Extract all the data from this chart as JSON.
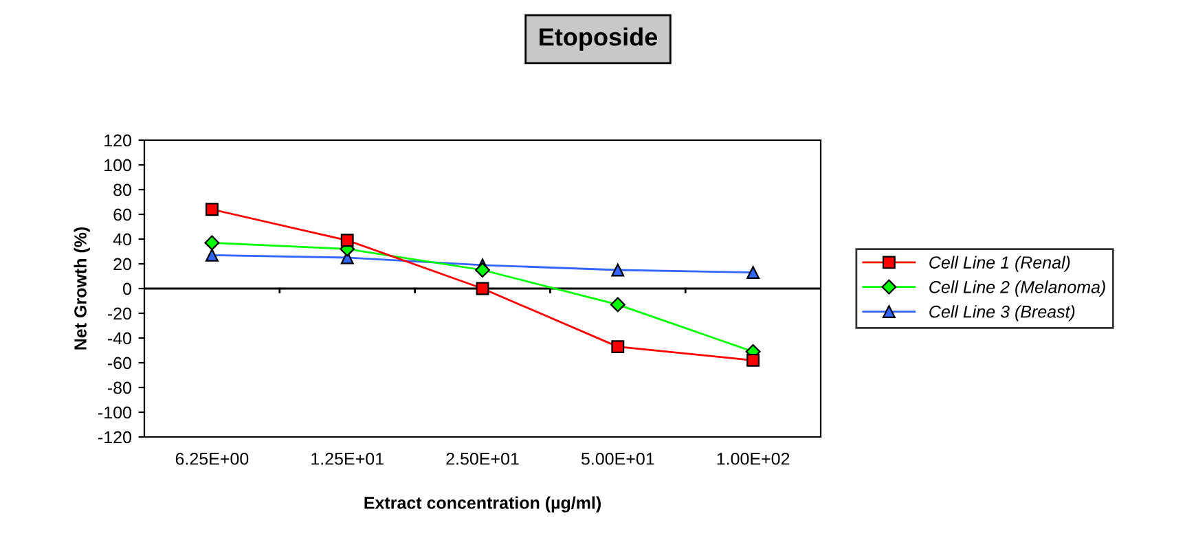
{
  "chart_data": {
    "type": "line",
    "title": "Etoposide",
    "xlabel": "Extract concentration (µg/ml)",
    "ylabel": "Net Growth (%)",
    "categories": [
      "6.25E+00",
      "1.25E+01",
      "2.50E+01",
      "5.00E+01",
      "1.00E+02"
    ],
    "series": [
      {
        "name": "Cell Line 1 (Renal)",
        "color": "#ff0000",
        "marker": "square",
        "values": [
          64,
          39,
          0,
          -47,
          -58
        ]
      },
      {
        "name": "Cell Line 2 (Melanoma)",
        "color": "#00ff00",
        "marker": "diamond",
        "values": [
          37,
          32,
          15,
          -13,
          -51
        ]
      },
      {
        "name": "Cell Line 3 (Breast)",
        "color": "#3366ff",
        "marker": "triangle",
        "values": [
          27,
          25,
          19,
          15,
          13
        ]
      }
    ],
    "ylim": [
      -120,
      120
    ],
    "yticks": [
      -120,
      -100,
      -80,
      -60,
      -40,
      -20,
      0,
      20,
      40,
      60,
      80,
      100,
      120
    ],
    "ref_lines": [
      {
        "axis": "y",
        "value": 0,
        "color": "#000000"
      }
    ],
    "grid": false,
    "legend": "right",
    "line_style": "solid"
  }
}
